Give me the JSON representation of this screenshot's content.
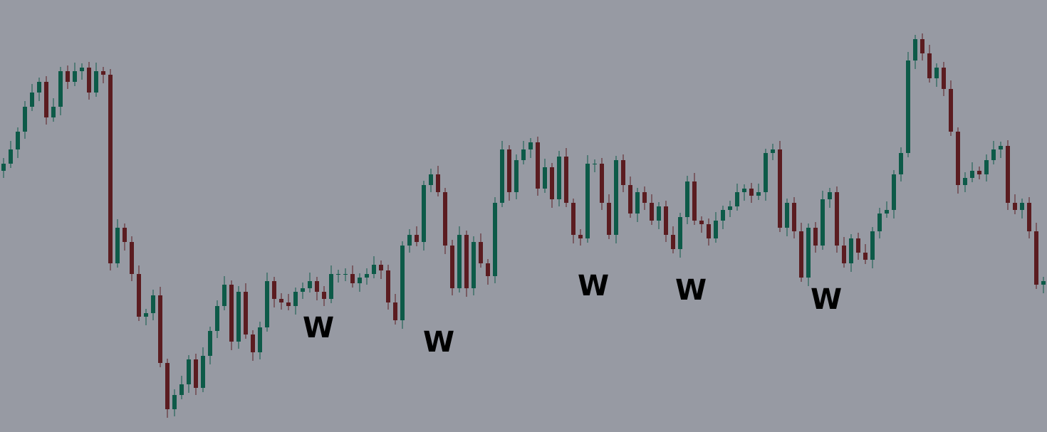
{
  "chart_data": {
    "type": "candlestick",
    "background": "#979aa3",
    "up_color": "#0d5a48",
    "down_color": "#5b1c20",
    "ylim": [
      0,
      607
    ],
    "open": [
      367,
      377,
      397,
      422,
      457,
      477,
      492,
      442,
      457,
      507,
      492,
      507,
      512,
      477,
      507,
      502,
      237,
      287,
      267,
      222,
      162,
      167,
      192,
      97,
      32,
      52,
      67,
      102,
      62,
      107,
      142,
      177,
      207,
      127,
      197,
      137,
      112,
      147,
      212,
      187,
      182,
      177,
      197,
      202,
      212,
      197,
      187,
      222,
      222,
      222,
      209,
      217,
      222,
      235,
      227,
      182,
      157,
      262,
      277,
      267,
      347,
      362,
      337,
      262,
      202,
      277,
      202,
      267,
      237,
      219,
      322,
      397,
      337,
      382,
      397,
      407,
      342,
      372,
      327,
      387,
      322,
      277,
      272,
      377,
      377,
      322,
      277,
      382,
      347,
      307,
      337,
      322,
      297,
      317,
      277,
      257,
      302,
      352,
      297,
      292,
      272,
      297,
      312,
      317,
      337,
      342,
      332,
      337,
      392,
      397,
      287,
      322,
      282,
      217,
      287,
      262,
      327,
      337,
      262,
      237,
      272,
      252,
      242,
      282,
      307,
      312,
      362,
      392,
      522,
      552,
      532,
      497,
      512,
      482,
      422,
      347,
      357,
      367,
      362,
      382,
      397,
      402,
      322,
      312,
      322,
      282,
      207
    ],
    "high": [
      385,
      409,
      428,
      465,
      489,
      498,
      500,
      469,
      513,
      515,
      519,
      518,
      520,
      519,
      513,
      510,
      299,
      293,
      275,
      234,
      173,
      200,
      204,
      103,
      60,
      79,
      108,
      110,
      119,
      148,
      185,
      219,
      213,
      205,
      209,
      143,
      155,
      224,
      218,
      195,
      194,
      203,
      210,
      224,
      218,
      205,
      234,
      228,
      230,
      234,
      223,
      230,
      247,
      241,
      235,
      194,
      268,
      285,
      289,
      353,
      370,
      374,
      343,
      270,
      289,
      283,
      275,
      279,
      243,
      330,
      409,
      403,
      390,
      409,
      413,
      415,
      384,
      378,
      395,
      399,
      328,
      285,
      389,
      383,
      385,
      334,
      388,
      390,
      359,
      343,
      345,
      334,
      323,
      325,
      289,
      308,
      360,
      364,
      303,
      300,
      309,
      318,
      325,
      349,
      348,
      350,
      349,
      398,
      405,
      409,
      328,
      330,
      294,
      293,
      295,
      339,
      343,
      345,
      274,
      278,
      280,
      264,
      288,
      315,
      324,
      368,
      400,
      534,
      558,
      560,
      544,
      518,
      520,
      494,
      428,
      365,
      379,
      373,
      390,
      409,
      408,
      410,
      334,
      328,
      330,
      294,
      218
    ],
    "low": [
      357,
      371,
      385,
      412,
      451,
      465,
      432,
      436,
      445,
      482,
      486,
      495,
      467,
      471,
      490,
      227,
      231,
      255,
      212,
      156,
      150,
      157,
      91,
      20,
      22,
      46,
      55,
      52,
      56,
      95,
      132,
      171,
      115,
      117,
      131,
      100,
      102,
      141,
      175,
      172,
      171,
      165,
      187,
      196,
      185,
      177,
      181,
      210,
      212,
      203,
      197,
      207,
      216,
      215,
      172,
      151,
      145,
      252,
      261,
      255,
      337,
      331,
      250,
      192,
      196,
      190,
      192,
      231,
      207,
      209,
      316,
      325,
      327,
      376,
      385,
      332,
      336,
      315,
      317,
      316,
      265,
      262,
      266,
      365,
      312,
      271,
      265,
      337,
      301,
      295,
      312,
      291,
      285,
      267,
      251,
      245,
      292,
      291,
      280,
      262,
      266,
      285,
      302,
      311,
      325,
      322,
      326,
      325,
      382,
      281,
      275,
      272,
      211,
      205,
      252,
      256,
      315,
      252,
      231,
      225,
      242,
      236,
      230,
      272,
      301,
      300,
      352,
      386,
      510,
      522,
      491,
      485,
      472,
      416,
      335,
      337,
      351,
      355,
      352,
      376,
      385,
      312,
      306,
      300,
      272,
      201,
      195
    ],
    "close": [
      377,
      397,
      422,
      457,
      477,
      492,
      442,
      457,
      507,
      492,
      507,
      512,
      477,
      507,
      502,
      237,
      287,
      267,
      222,
      162,
      167,
      192,
      97,
      32,
      52,
      67,
      102,
      62,
      107,
      142,
      177,
      207,
      127,
      197,
      137,
      112,
      147,
      212,
      187,
      182,
      177,
      197,
      202,
      212,
      197,
      187,
      222,
      222,
      222,
      209,
      217,
      222,
      235,
      227,
      182,
      157,
      262,
      277,
      267,
      347,
      362,
      337,
      262,
      202,
      277,
      202,
      267,
      237,
      219,
      322,
      397,
      337,
      382,
      397,
      407,
      342,
      372,
      327,
      387,
      322,
      277,
      272,
      377,
      377,
      322,
      277,
      382,
      347,
      307,
      337,
      322,
      297,
      317,
      277,
      257,
      302,
      352,
      297,
      292,
      272,
      297,
      312,
      317,
      337,
      342,
      332,
      337,
      392,
      397,
      287,
      322,
      282,
      217,
      287,
      262,
      327,
      337,
      262,
      237,
      272,
      252,
      242,
      282,
      307,
      312,
      362,
      392,
      522,
      552,
      532,
      497,
      512,
      482,
      422,
      347,
      357,
      367,
      362,
      382,
      397,
      402,
      322,
      312,
      322,
      282,
      207,
      212
    ],
    "annotations": [
      "W",
      "W",
      "W",
      "W",
      "W"
    ]
  }
}
